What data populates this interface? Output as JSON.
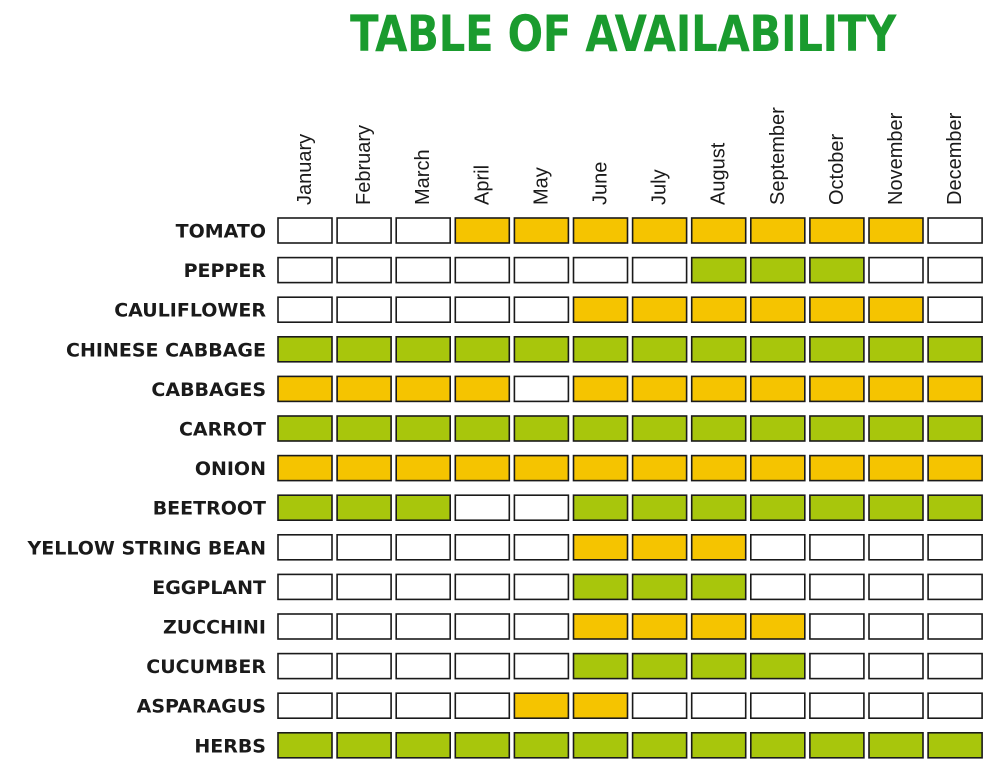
{
  "chart_data": {
    "type": "table",
    "title": "TABLE OF AVAILABILITY",
    "months": [
      "January",
      "February",
      "March",
      "April",
      "May",
      "June",
      "July",
      "August",
      "September",
      "October",
      "November",
      "December"
    ],
    "legend": {
      "0": "empty",
      "1": "yellow",
      "2": "green"
    },
    "colors": {
      "0": "#ffffff",
      "1": "#f5c400",
      "2": "#a8c60c"
    },
    "rows": [
      {
        "name": "TOMATO",
        "values": [
          0,
          0,
          0,
          1,
          1,
          1,
          1,
          1,
          1,
          1,
          1,
          0
        ]
      },
      {
        "name": "PEPPER",
        "values": [
          0,
          0,
          0,
          0,
          0,
          0,
          0,
          2,
          2,
          2,
          0,
          0
        ]
      },
      {
        "name": "CAULIFLOWER",
        "values": [
          0,
          0,
          0,
          0,
          0,
          1,
          1,
          1,
          1,
          1,
          1,
          0
        ]
      },
      {
        "name": "CHINESE CABBAGE",
        "values": [
          2,
          2,
          2,
          2,
          2,
          2,
          2,
          2,
          2,
          2,
          2,
          2
        ]
      },
      {
        "name": "CABBAGES",
        "values": [
          1,
          1,
          1,
          1,
          0,
          1,
          1,
          1,
          1,
          1,
          1,
          1
        ]
      },
      {
        "name": "CARROT",
        "values": [
          2,
          2,
          2,
          2,
          2,
          2,
          2,
          2,
          2,
          2,
          2,
          2
        ]
      },
      {
        "name": "ONION",
        "values": [
          1,
          1,
          1,
          1,
          1,
          1,
          1,
          1,
          1,
          1,
          1,
          1
        ]
      },
      {
        "name": "BEETROOT",
        "values": [
          2,
          2,
          2,
          0,
          0,
          2,
          2,
          2,
          2,
          2,
          2,
          2
        ]
      },
      {
        "name": "YELLOW STRING BEAN",
        "values": [
          0,
          0,
          0,
          0,
          0,
          1,
          1,
          1,
          0,
          0,
          0,
          0
        ]
      },
      {
        "name": "EGGPLANT",
        "values": [
          0,
          0,
          0,
          0,
          0,
          2,
          2,
          2,
          0,
          0,
          0,
          0
        ]
      },
      {
        "name": "ZUCCHINI",
        "values": [
          0,
          0,
          0,
          0,
          0,
          1,
          1,
          1,
          1,
          0,
          0,
          0
        ]
      },
      {
        "name": "CUCUMBER",
        "values": [
          0,
          0,
          0,
          0,
          0,
          2,
          2,
          2,
          2,
          0,
          0,
          0
        ]
      },
      {
        "name": "ASPARAGUS",
        "values": [
          0,
          0,
          0,
          0,
          1,
          1,
          0,
          0,
          0,
          0,
          0,
          0
        ]
      },
      {
        "name": "HERBS",
        "values": [
          2,
          2,
          2,
          2,
          2,
          2,
          2,
          2,
          2,
          2,
          2,
          2
        ]
      }
    ]
  }
}
